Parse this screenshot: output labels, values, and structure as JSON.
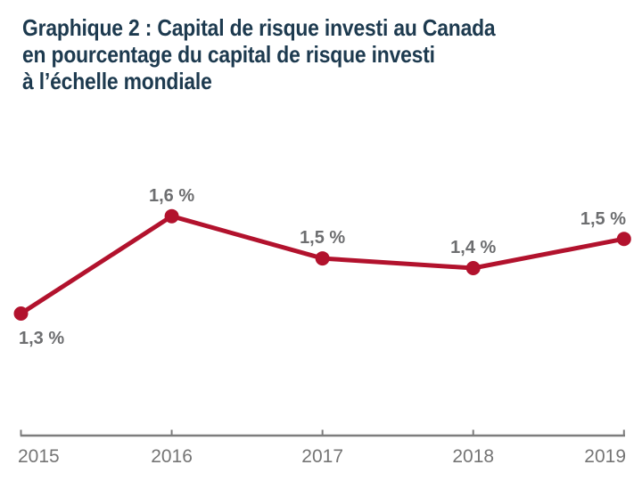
{
  "title": {
    "lines": [
      "Graphique 2 : Capital de risque investi au Canada",
      "en pourcentage du capital de risque investi",
      "à l’échelle mondiale"
    ],
    "color": "#1d3a4f"
  },
  "chart_data": {
    "type": "line",
    "categories": [
      "2015",
      "2016",
      "2017",
      "2018",
      "2019"
    ],
    "values": [
      1.3,
      1.6,
      1.5,
      1.4,
      1.5
    ],
    "values_precise": [
      1.3,
      1.6,
      1.47,
      1.44,
      1.53
    ],
    "point_labels": [
      "1,3 %",
      "1,6 %",
      "1,5 %",
      "1,4 %",
      "1,5 %"
    ],
    "label_placement": [
      "below",
      "above",
      "above",
      "above",
      "above"
    ],
    "title": "Graphique 2 : Capital de risque investi au Canada en pourcentage du capital de risque investi à l’échelle mondiale",
    "xlabel": "",
    "ylabel": "",
    "ylim": [
      0.92,
      1.72
    ],
    "grid": false,
    "legend": false,
    "line_color": "#b2122d",
    "marker_color": "#b2122d",
    "data_label_color": "#6d6e70",
    "axis_color": "#7d7d7d",
    "tick_label_color": "#757575"
  }
}
